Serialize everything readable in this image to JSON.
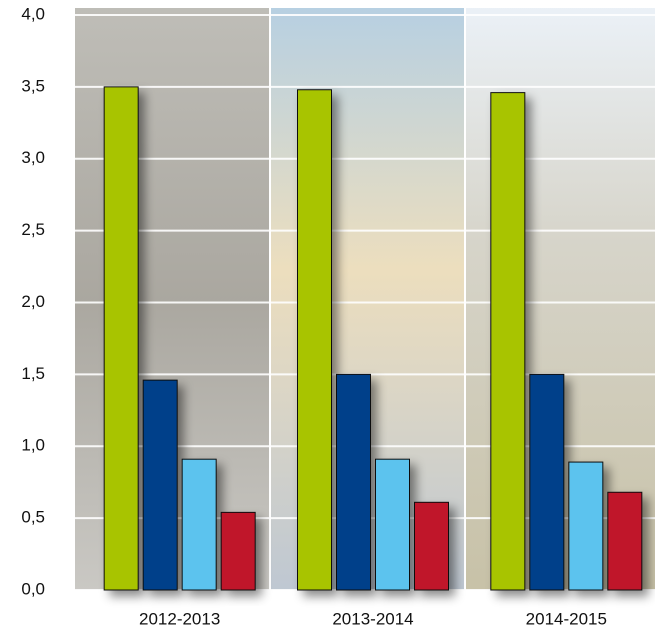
{
  "chart_data": {
    "type": "bar",
    "categories": [
      "2012-2013",
      "2013-2014",
      "2014-2015"
    ],
    "series": [
      {
        "color": "#a8c400",
        "values": [
          3.5,
          3.48,
          3.46
        ]
      },
      {
        "color": "#003f8a",
        "values": [
          1.46,
          1.5,
          1.5
        ]
      },
      {
        "color": "#5bc3ee",
        "values": [
          0.91,
          0.91,
          0.89
        ]
      },
      {
        "color": "#c0132a",
        "values": [
          0.54,
          0.61,
          0.68
        ]
      }
    ],
    "ylim": [
      0,
      4
    ],
    "yticks": [
      {
        "value": 0,
        "label": "0,0"
      },
      {
        "value": 0.5,
        "label": "0,5"
      },
      {
        "value": 1,
        "label": "1,0"
      },
      {
        "value": 1.5,
        "label": "1,5"
      },
      {
        "value": 2,
        "label": "2,0"
      },
      {
        "value": 2.5,
        "label": "2,5"
      },
      {
        "value": 3,
        "label": "3,0"
      },
      {
        "value": 3.5,
        "label": "3,5"
      },
      {
        "value": 4,
        "label": "4,0"
      }
    ],
    "grid": true
  }
}
